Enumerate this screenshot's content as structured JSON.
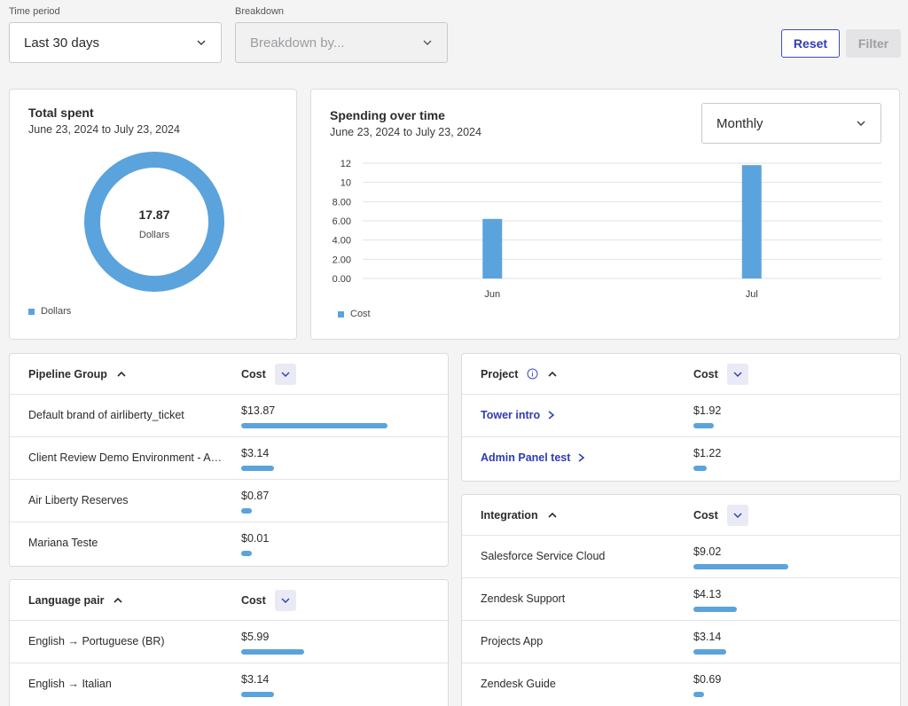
{
  "filters": {
    "time_period_label": "Time period",
    "time_period_value": "Last 30 days",
    "breakdown_label": "Breakdown",
    "breakdown_placeholder": "Breakdown by...",
    "reset_label": "Reset",
    "filter_label": "Filter"
  },
  "total_spent": {
    "title": "Total spent",
    "date_range": "June 23, 2024 to July 23, 2024",
    "value": "17.87",
    "unit": "Dollars",
    "legend": "Dollars",
    "color": "#5ba3dc"
  },
  "spending_over_time": {
    "title": "Spending over time",
    "date_range": "June 23, 2024 to July 23, 2024",
    "interval": "Monthly",
    "legend": "Cost"
  },
  "chart_data": {
    "type": "bar",
    "categories": [
      "Jun",
      "Jul"
    ],
    "series": [
      {
        "name": "Cost",
        "values": [
          6.2,
          11.8
        ]
      }
    ],
    "yticks": [
      "0.00",
      "2.00",
      "4.00",
      "6.00",
      "8.00",
      "10",
      "12"
    ],
    "ylim": [
      0,
      12
    ],
    "grid": true,
    "color": "#5ba3dc"
  },
  "pipeline_group": {
    "header": "Pipeline Group",
    "cost_header": "Cost",
    "rows": [
      {
        "name": "Default brand of airliberty_ticket",
        "cost": "$13.87",
        "amount": 13.87
      },
      {
        "name": "Client Review Demo Environment - Air Liberty",
        "cost": "$3.14",
        "amount": 3.14
      },
      {
        "name": "Air Liberty Reserves",
        "cost": "$0.87",
        "amount": 0.87
      },
      {
        "name": "Mariana Teste",
        "cost": "$0.01",
        "amount": 0.01
      }
    ]
  },
  "language_pair": {
    "header": "Language pair",
    "cost_header": "Cost",
    "rows": [
      {
        "name": "English → Portuguese (BR)",
        "cost": "$5.99",
        "amount": 5.99
      },
      {
        "name": "English → Italian",
        "cost": "$3.14",
        "amount": 3.14
      }
    ]
  },
  "project": {
    "header": "Project",
    "cost_header": "Cost",
    "rows": [
      {
        "name": "Tower intro",
        "cost": "$1.92",
        "amount": 1.92
      },
      {
        "name": "Admin Panel test",
        "cost": "$1.22",
        "amount": 1.22
      }
    ]
  },
  "integration": {
    "header": "Integration",
    "cost_header": "Cost",
    "rows": [
      {
        "name": "Salesforce Service Cloud",
        "cost": "$9.02",
        "amount": 9.02
      },
      {
        "name": "Zendesk Support",
        "cost": "$4.13",
        "amount": 4.13
      },
      {
        "name": "Projects App",
        "cost": "$3.14",
        "amount": 3.14
      },
      {
        "name": "Zendesk Guide",
        "cost": "$0.69",
        "amount": 0.69
      }
    ]
  }
}
